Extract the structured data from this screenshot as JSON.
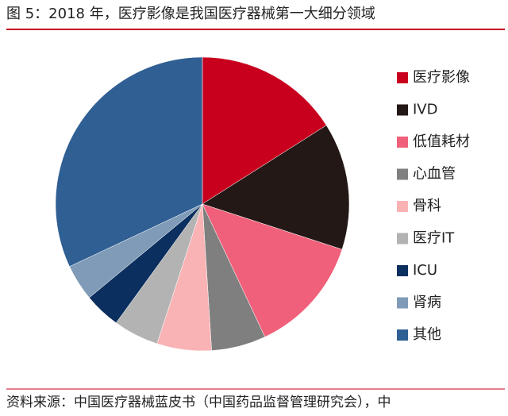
{
  "chart_data": {
    "type": "pie",
    "title": "图 5：2018 年，医疗影像是我国医疗器械第一大细分领域",
    "source": "资料来源：中国医疗器械蓝皮书（中国药品监督管理研究会），中",
    "categories": [
      "医疗影像",
      "IVD",
      "低值耗材",
      "心血管",
      "骨科",
      "医疗IT",
      "ICU",
      "肾病",
      "其他"
    ],
    "values": [
      16,
      14,
      13,
      6,
      6,
      5,
      4,
      4,
      32
    ],
    "colors": [
      "#c8001e",
      "#231815",
      "#f0607a",
      "#7f7f7f",
      "#f9b3b5",
      "#b3b3b3",
      "#0b2f5e",
      "#7f9bb8",
      "#2f5f93"
    ],
    "legend": "right"
  }
}
